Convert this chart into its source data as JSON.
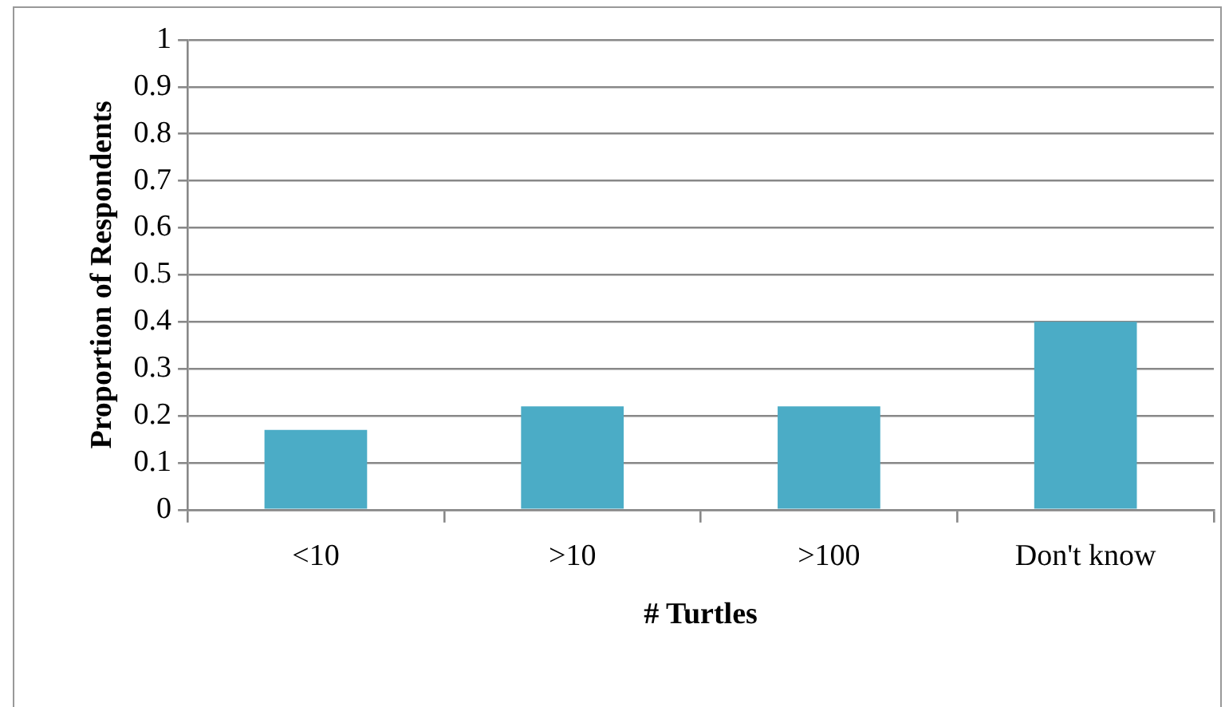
{
  "chart_data": {
    "type": "bar",
    "xlabel": "# Turtles",
    "ylabel": "Proportion of Respondents",
    "categories": [
      "<10",
      ">10",
      ">100",
      "Don't know"
    ],
    "values": [
      0.17,
      0.22,
      0.22,
      0.4
    ],
    "color": "#4bacc6",
    "ylim": [
      0,
      1
    ],
    "yticks": [
      0,
      0.1,
      0.2,
      0.3,
      0.4,
      0.5,
      0.6,
      0.7,
      0.8,
      0.9,
      1
    ],
    "grid": "y"
  }
}
